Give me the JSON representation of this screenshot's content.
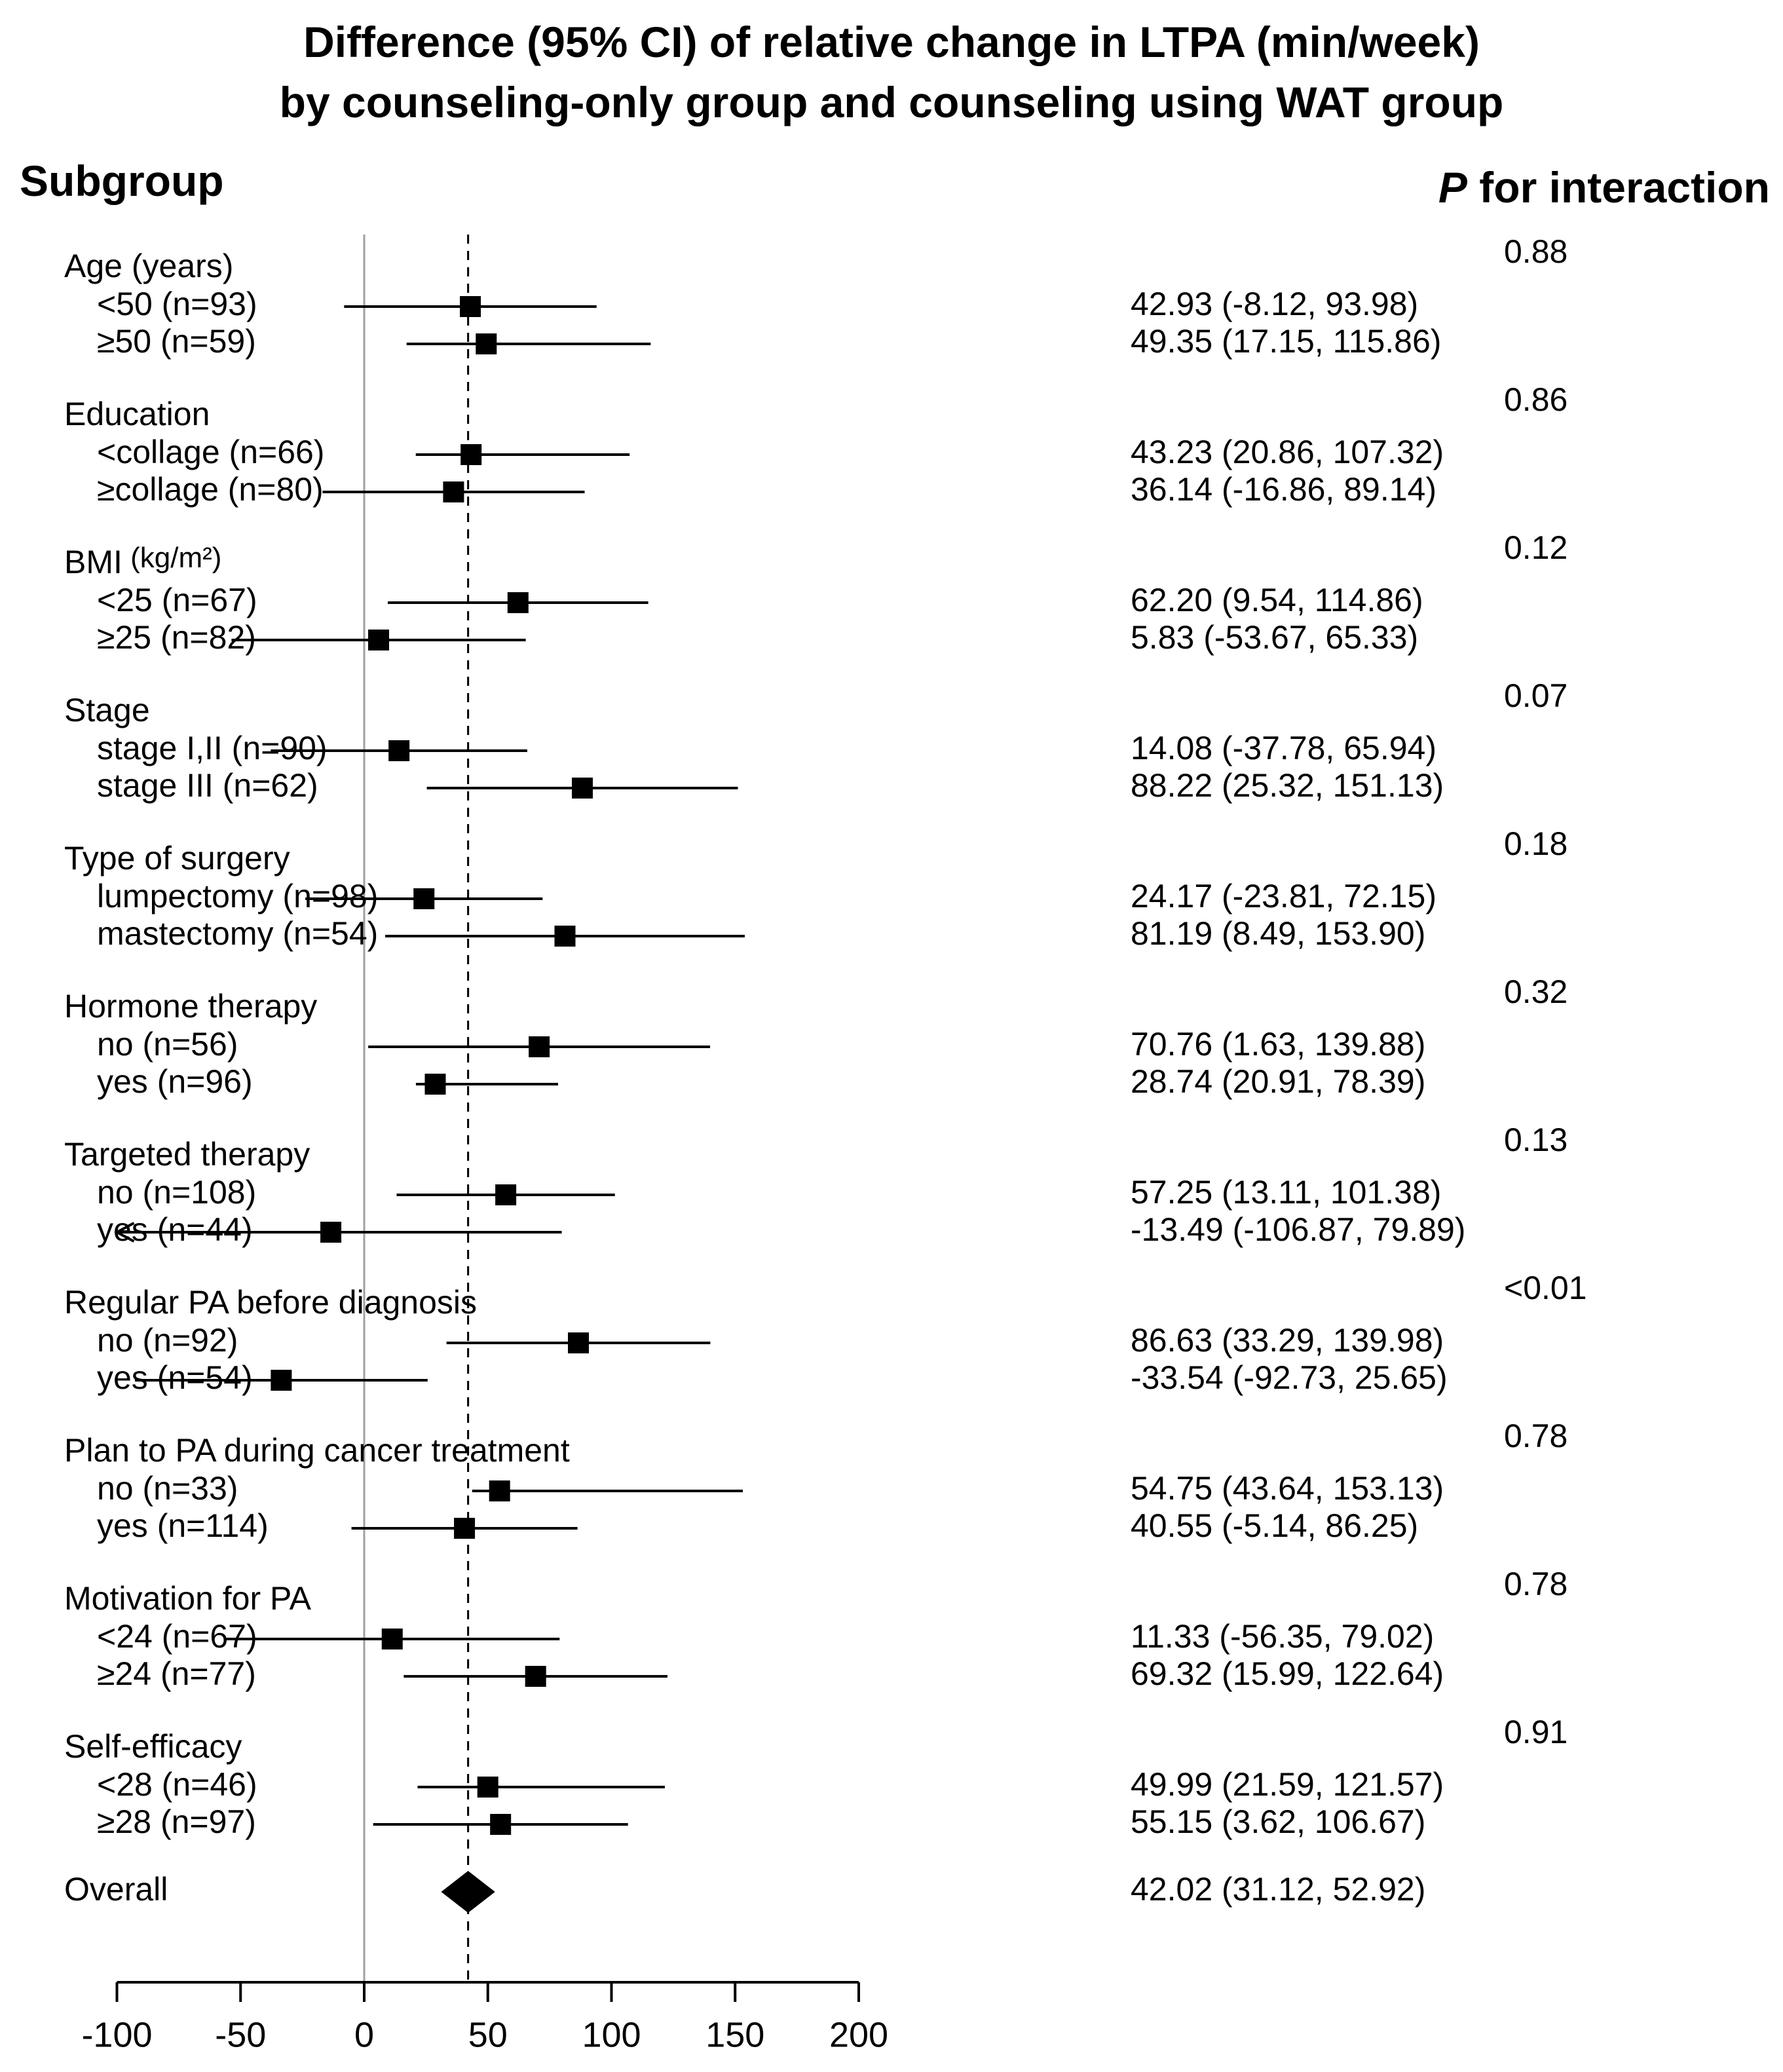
{
  "title": {
    "line1": "Difference (95% CI) of relative change in LTPA (min/week)",
    "line2": "by counseling-only group and counseling using WAT group"
  },
  "headers": {
    "subgroup": "Subgroup",
    "p_italic": "P",
    "p_rest": " for interaction"
  },
  "colors": {
    "ink": "#000000",
    "zero_line": "#a0a0a0",
    "background": "#ffffff"
  },
  "chart_data": {
    "type": "forest",
    "xlim": [
      -100,
      200
    ],
    "ticks": [
      -100,
      -50,
      0,
      50,
      100,
      150,
      200
    ],
    "reference_line": 0,
    "overall_dashed_line": 42.02,
    "groups": [
      {
        "name": "Age (years)",
        "p": "0.88",
        "rows": [
          {
            "label": "<50 (n=93)",
            "est": 42.93,
            "lo": -8.12,
            "hi": 93.98,
            "text": "42.93 (-8.12, 93.98)"
          },
          {
            "label": "≥50 (n=59)",
            "est": 49.35,
            "lo": 17.15,
            "hi": 115.86,
            "text": "49.35 (17.15, 115.86)"
          }
        ]
      },
      {
        "name": "Education",
        "p": "0.86",
        "rows": [
          {
            "label": "<collage (n=66)",
            "est": 43.23,
            "lo": 20.86,
            "hi": 107.32,
            "text": "43.23 (20.86, 107.32)"
          },
          {
            "label": "≥collage (n=80)",
            "est": 36.14,
            "lo": -16.86,
            "hi": 89.14,
            "text": "36.14 (-16.86, 89.14)"
          }
        ]
      },
      {
        "name": "BMI",
        "name_suffix": "(kg/m²)",
        "p": "0.12",
        "rows": [
          {
            "label": "<25 (n=67)",
            "est": 62.2,
            "lo": 9.54,
            "hi": 114.86,
            "text": "62.20 (9.54, 114.86)"
          },
          {
            "label": "≥25 (n=82)",
            "est": 5.83,
            "lo": -53.67,
            "hi": 65.33,
            "text": "5.83 (-53.67, 65.33)"
          }
        ]
      },
      {
        "name": "Stage",
        "p": "0.07",
        "rows": [
          {
            "label": "stage I,II (n=90)",
            "est": 14.08,
            "lo": -37.78,
            "hi": 65.94,
            "text": "14.08 (-37.78, 65.94)"
          },
          {
            "label": "stage III (n=62)",
            "est": 88.22,
            "lo": 25.32,
            "hi": 151.13,
            "text": "88.22 (25.32, 151.13)"
          }
        ]
      },
      {
        "name": "Type of surgery",
        "p": "0.18",
        "rows": [
          {
            "label": "lumpectomy (n=98)",
            "est": 24.17,
            "lo": -23.81,
            "hi": 72.15,
            "text": "24.17 (-23.81, 72.15)"
          },
          {
            "label": "mastectomy (n=54)",
            "est": 81.19,
            "lo": 8.49,
            "hi": 153.9,
            "text": "81.19 (8.49, 153.90)"
          }
        ]
      },
      {
        "name": "Hormone therapy",
        "p": "0.32",
        "rows": [
          {
            "label": "no (n=56)",
            "est": 70.76,
            "lo": 1.63,
            "hi": 139.88,
            "text": "70.76 (1.63, 139.88)"
          },
          {
            "label": "yes (n=96)",
            "est": 28.74,
            "lo": 20.91,
            "hi": 78.39,
            "text": "28.74 (20.91, 78.39)"
          }
        ]
      },
      {
        "name": "Targeted therapy",
        "p": "0.13",
        "rows": [
          {
            "label": "no (n=108)",
            "est": 57.25,
            "lo": 13.11,
            "hi": 101.38,
            "text": "57.25 (13.11, 101.38)"
          },
          {
            "label": "yes (n=44)",
            "est": -13.49,
            "lo": -106.87,
            "hi": 79.89,
            "text": "-13.49 (-106.87, 79.89)"
          }
        ]
      },
      {
        "name": "Regular PA before diagnosis",
        "p": "<0.01",
        "rows": [
          {
            "label": "no (n=92)",
            "est": 86.63,
            "lo": 33.29,
            "hi": 139.98,
            "text": "86.63 (33.29, 139.98)"
          },
          {
            "label": "yes (n=54)",
            "est": -33.54,
            "lo": -92.73,
            "hi": 25.65,
            "text": "-33.54 (-92.73, 25.65)"
          }
        ]
      },
      {
        "name": "Plan to PA during cancer treatment",
        "p": "0.78",
        "rows": [
          {
            "label": "no (n=33)",
            "est": 54.75,
            "lo": 43.64,
            "hi": 153.13,
            "text": "54.75 (43.64, 153.13)"
          },
          {
            "label": "yes (n=114)",
            "est": 40.55,
            "lo": -5.14,
            "hi": 86.25,
            "text": "40.55 (-5.14, 86.25)"
          }
        ]
      },
      {
        "name": "Motivation for PA",
        "p": "0.78",
        "rows": [
          {
            "label": "<24 (n=67)",
            "est": 11.33,
            "lo": -56.35,
            "hi": 79.02,
            "text": "11.33 (-56.35, 79.02)"
          },
          {
            "label": "≥24 (n=77)",
            "est": 69.32,
            "lo": 15.99,
            "hi": 122.64,
            "text": "69.32 (15.99, 122.64)"
          }
        ]
      },
      {
        "name": "Self-efficacy",
        "p": "0.91",
        "rows": [
          {
            "label": "<28 (n=46)",
            "est": 49.99,
            "lo": 21.59,
            "hi": 121.57,
            "text": "49.99 (21.59, 121.57)"
          },
          {
            "label": "≥28 (n=97)",
            "est": 55.15,
            "lo": 3.62,
            "hi": 106.67,
            "text": "55.15 (3.62, 106.67)"
          }
        ]
      }
    ],
    "overall": {
      "label": "Overall",
      "est": 42.02,
      "lo": 31.12,
      "hi": 52.92,
      "text": "42.02 (31.12, 52.92)"
    }
  }
}
